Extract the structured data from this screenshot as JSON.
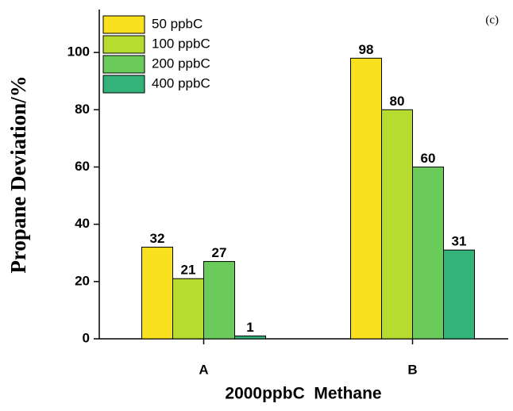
{
  "chart_data": {
    "type": "bar",
    "annotation": "(c)",
    "x_label": "2000ppbC  Methane",
    "y_label": "Propane Deviation/%",
    "categories": [
      "A",
      "B"
    ],
    "series": [
      {
        "name": "50 ppbC",
        "color": "#f9e11e",
        "values": [
          32,
          98
        ]
      },
      {
        "name": "100 ppbC",
        "color": "#b6dc2f",
        "values": [
          21,
          80
        ]
      },
      {
        "name": "200 ppbC",
        "color": "#6acb5a",
        "values": [
          27,
          60
        ]
      },
      {
        "name": "400 ppbC",
        "color": "#33b379",
        "values": [
          1,
          31
        ]
      }
    ],
    "ylim": [
      0,
      115
    ],
    "yticks": [
      0,
      20,
      40,
      60,
      80,
      100
    ],
    "legend": "upper-left"
  }
}
